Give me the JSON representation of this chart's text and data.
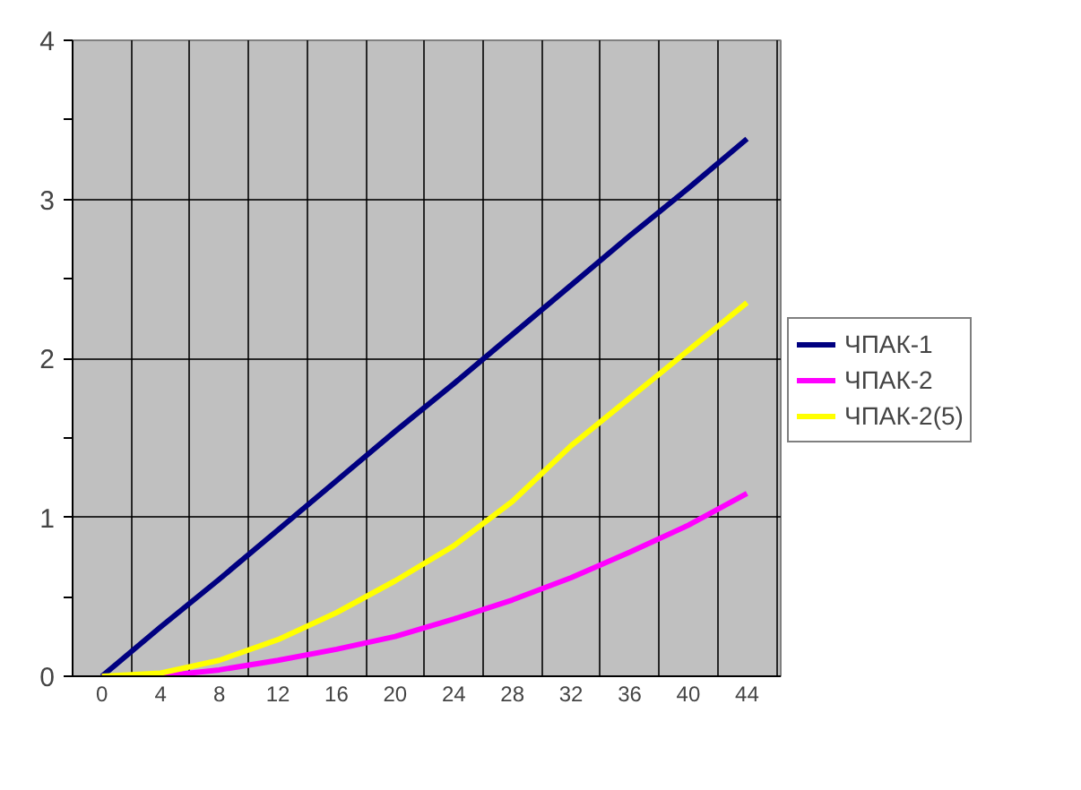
{
  "chart_data": {
    "type": "line",
    "x": [
      0,
      4,
      8,
      12,
      16,
      20,
      24,
      28,
      32,
      36,
      40,
      44
    ],
    "series": [
      {
        "name": "ЧПАК-1",
        "color": "#000080",
        "values": [
          0,
          0.31,
          0.61,
          0.92,
          1.23,
          1.54,
          1.84,
          2.15,
          2.46,
          2.77,
          3.07,
          3.38
        ]
      },
      {
        "name": "ЧПАК-2",
        "color": "#ff00ff",
        "values": [
          0,
          0,
          0.04,
          0.1,
          0.17,
          0.25,
          0.36,
          0.48,
          0.62,
          0.78,
          0.95,
          1.15
        ]
      },
      {
        "name": "ЧПАК-2(5)",
        "color": "#ffff00",
        "values": [
          0,
          0.02,
          0.1,
          0.23,
          0.4,
          0.6,
          0.82,
          1.1,
          1.45,
          1.75,
          2.05,
          2.35
        ]
      }
    ],
    "xlim": [
      -2,
      46.3
    ],
    "xticks": [
      0,
      4,
      8,
      12,
      16,
      20,
      24,
      28,
      32,
      36,
      40,
      44,
      {
        "value": -2,
        "label": null
      },
      {
        "value": 2,
        "label": null
      },
      {
        "value": 6,
        "label": null
      },
      {
        "value": 10,
        "label": null
      },
      {
        "value": 14,
        "label": null
      },
      {
        "value": 18,
        "label": null
      },
      {
        "value": 22,
        "label": null
      },
      {
        "value": 26,
        "label": null
      },
      {
        "value": 30,
        "label": null
      },
      {
        "value": 34,
        "label": null
      },
      {
        "value": 38,
        "label": null
      },
      {
        "value": 42,
        "label": null
      },
      {
        "value": 46,
        "label": null
      }
    ],
    "ylim": [
      0,
      4
    ],
    "yticks": [
      0,
      1,
      2,
      3,
      4,
      {
        "value": 0.5,
        "label": null
      },
      {
        "value": 1.5,
        "label": null
      },
      {
        "value": 2.5,
        "label": null
      },
      {
        "value": 3.5,
        "label": null
      }
    ],
    "grid": true,
    "legend": "right",
    "marker": "none",
    "line_style": "solid"
  }
}
